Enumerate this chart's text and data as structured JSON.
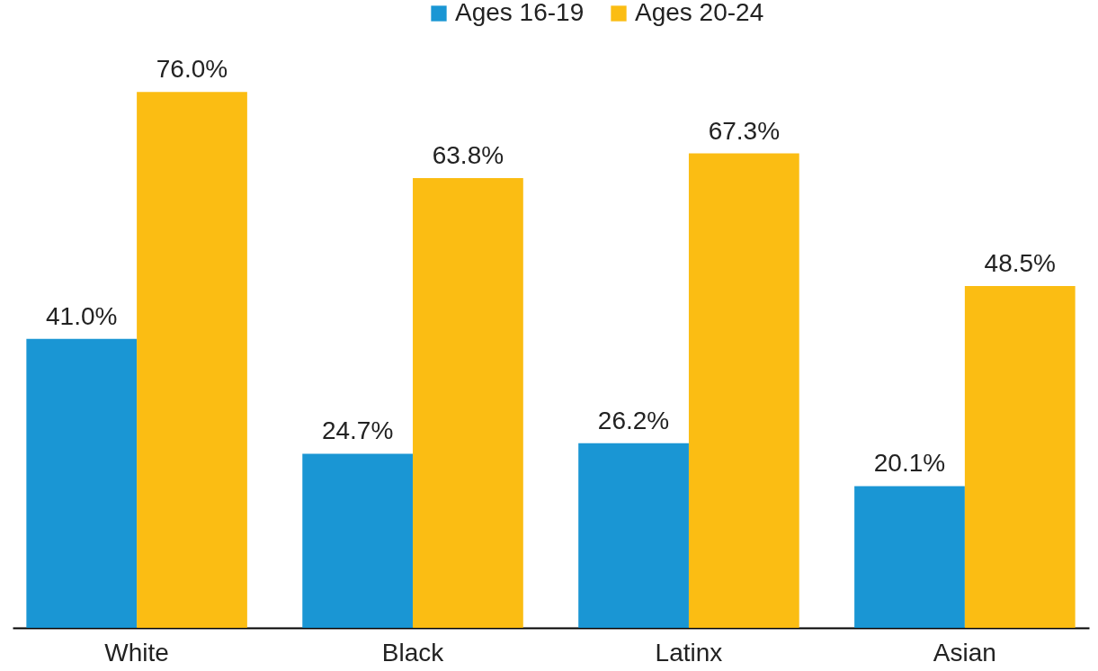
{
  "chart_data": {
    "type": "bar",
    "categories": [
      "White",
      "Black",
      "Latinx",
      "Asian"
    ],
    "series": [
      {
        "name": "Ages 16-19",
        "color": "#1a96d4",
        "values": [
          41.0,
          24.7,
          26.2,
          20.1
        ],
        "value_labels": [
          "41.0%",
          "24.7%",
          "26.2%",
          "20.1%"
        ]
      },
      {
        "name": "Ages 20-24",
        "color": "#fbbd13",
        "values": [
          76.0,
          63.8,
          67.3,
          48.5
        ],
        "value_labels": [
          "76.0%",
          "63.8%",
          "67.3%",
          "48.5%"
        ]
      }
    ],
    "legend": "top"
  }
}
